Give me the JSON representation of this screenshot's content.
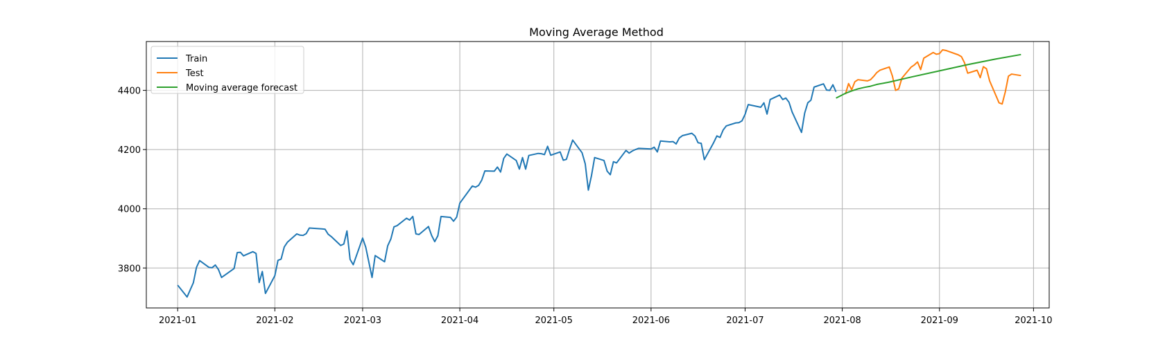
{
  "chart_data": {
    "type": "line",
    "title": "Moving Average Method",
    "xlabel": "",
    "ylabel": "",
    "grid": true,
    "legend_position": "top-left",
    "xlim": [
      "2020-12-22",
      "2021-10-06"
    ],
    "ylim": [
      3665,
      4565
    ],
    "x_ticks": [
      {
        "date": "2021-01-01",
        "label": "2021-01"
      },
      {
        "date": "2021-02-01",
        "label": "2021-02"
      },
      {
        "date": "2021-03-01",
        "label": "2021-03"
      },
      {
        "date": "2021-04-01",
        "label": "2021-04"
      },
      {
        "date": "2021-05-01",
        "label": "2021-05"
      },
      {
        "date": "2021-06-01",
        "label": "2021-06"
      },
      {
        "date": "2021-07-01",
        "label": "2021-07"
      },
      {
        "date": "2021-08-01",
        "label": "2021-08"
      },
      {
        "date": "2021-09-01",
        "label": "2021-09"
      },
      {
        "date": "2021-10-01",
        "label": "2021-10"
      }
    ],
    "y_ticks": [
      3800,
      4000,
      4200,
      4400
    ],
    "series": [
      {
        "name": "Train",
        "color": "#1f77b4",
        "points": [
          [
            "2021-01-01",
            3742
          ],
          [
            "2021-01-04",
            3702
          ],
          [
            "2021-01-06",
            3750
          ],
          [
            "2021-01-07",
            3802
          ],
          [
            "2021-01-08",
            3825
          ],
          [
            "2021-01-11",
            3802
          ],
          [
            "2021-01-12",
            3801
          ],
          [
            "2021-01-13",
            3810
          ],
          [
            "2021-01-14",
            3795
          ],
          [
            "2021-01-15",
            3768
          ],
          [
            "2021-01-19",
            3798
          ],
          [
            "2021-01-20",
            3852
          ],
          [
            "2021-01-21",
            3853
          ],
          [
            "2021-01-22",
            3841
          ],
          [
            "2021-01-25",
            3855
          ],
          [
            "2021-01-26",
            3849
          ],
          [
            "2021-01-27",
            3751
          ],
          [
            "2021-01-28",
            3788
          ],
          [
            "2021-01-29",
            3714
          ],
          [
            "2021-02-01",
            3774
          ],
          [
            "2021-02-02",
            3826
          ],
          [
            "2021-02-03",
            3830
          ],
          [
            "2021-02-04",
            3871
          ],
          [
            "2021-02-05",
            3887
          ],
          [
            "2021-02-08",
            3915
          ],
          [
            "2021-02-09",
            3911
          ],
          [
            "2021-02-10",
            3910
          ],
          [
            "2021-02-11",
            3916
          ],
          [
            "2021-02-12",
            3935
          ],
          [
            "2021-02-16",
            3932
          ],
          [
            "2021-02-17",
            3931
          ],
          [
            "2021-02-18",
            3914
          ],
          [
            "2021-02-19",
            3906
          ],
          [
            "2021-02-22",
            3876
          ],
          [
            "2021-02-23",
            3881
          ],
          [
            "2021-02-24",
            3925
          ],
          [
            "2021-02-25",
            3829
          ],
          [
            "2021-02-26",
            3811
          ],
          [
            "2021-03-01",
            3901
          ],
          [
            "2021-03-02",
            3870
          ],
          [
            "2021-03-03",
            3819
          ],
          [
            "2021-03-04",
            3768
          ],
          [
            "2021-03-05",
            3842
          ],
          [
            "2021-03-08",
            3821
          ],
          [
            "2021-03-09",
            3875
          ],
          [
            "2021-03-10",
            3898
          ],
          [
            "2021-03-11",
            3939
          ],
          [
            "2021-03-12",
            3943
          ],
          [
            "2021-03-15",
            3968
          ],
          [
            "2021-03-16",
            3962
          ],
          [
            "2021-03-17",
            3974
          ],
          [
            "2021-03-18",
            3915
          ],
          [
            "2021-03-19",
            3913
          ],
          [
            "2021-03-22",
            3940
          ],
          [
            "2021-03-23",
            3910
          ],
          [
            "2021-03-24",
            3889
          ],
          [
            "2021-03-25",
            3909
          ],
          [
            "2021-03-26",
            3974
          ],
          [
            "2021-03-29",
            3971
          ],
          [
            "2021-03-30",
            3958
          ],
          [
            "2021-03-31",
            3972
          ],
          [
            "2021-04-01",
            4019
          ],
          [
            "2021-04-05",
            4077
          ],
          [
            "2021-04-06",
            4073
          ],
          [
            "2021-04-07",
            4079
          ],
          [
            "2021-04-08",
            4097
          ],
          [
            "2021-04-09",
            4128
          ],
          [
            "2021-04-12",
            4127
          ],
          [
            "2021-04-13",
            4141
          ],
          [
            "2021-04-14",
            4124
          ],
          [
            "2021-04-15",
            4170
          ],
          [
            "2021-04-16",
            4185
          ],
          [
            "2021-04-19",
            4163
          ],
          [
            "2021-04-20",
            4134
          ],
          [
            "2021-04-21",
            4173
          ],
          [
            "2021-04-22",
            4134
          ],
          [
            "2021-04-23",
            4180
          ],
          [
            "2021-04-26",
            4187
          ],
          [
            "2021-04-27",
            4186
          ],
          [
            "2021-04-28",
            4183
          ],
          [
            "2021-04-29",
            4211
          ],
          [
            "2021-04-30",
            4181
          ],
          [
            "2021-05-03",
            4192
          ],
          [
            "2021-05-04",
            4164
          ],
          [
            "2021-05-05",
            4167
          ],
          [
            "2021-05-06",
            4201
          ],
          [
            "2021-05-07",
            4232
          ],
          [
            "2021-05-10",
            4189
          ],
          [
            "2021-05-11",
            4152
          ],
          [
            "2021-05-12",
            4063
          ],
          [
            "2021-05-13",
            4112
          ],
          [
            "2021-05-14",
            4173
          ],
          [
            "2021-05-17",
            4163
          ],
          [
            "2021-05-18",
            4127
          ],
          [
            "2021-05-19",
            4115
          ],
          [
            "2021-05-20",
            4159
          ],
          [
            "2021-05-21",
            4155
          ],
          [
            "2021-05-24",
            4197
          ],
          [
            "2021-05-25",
            4188
          ],
          [
            "2021-05-26",
            4195
          ],
          [
            "2021-05-27",
            4200
          ],
          [
            "2021-05-28",
            4204
          ],
          [
            "2021-06-01",
            4202
          ],
          [
            "2021-06-02",
            4208
          ],
          [
            "2021-06-03",
            4192
          ],
          [
            "2021-06-04",
            4229
          ],
          [
            "2021-06-07",
            4226
          ],
          [
            "2021-06-08",
            4227
          ],
          [
            "2021-06-09",
            4219
          ],
          [
            "2021-06-10",
            4239
          ],
          [
            "2021-06-11",
            4247
          ],
          [
            "2021-06-14",
            4255
          ],
          [
            "2021-06-15",
            4246
          ],
          [
            "2021-06-16",
            4223
          ],
          [
            "2021-06-17",
            4221
          ],
          [
            "2021-06-18",
            4166
          ],
          [
            "2021-06-21",
            4224
          ],
          [
            "2021-06-22",
            4246
          ],
          [
            "2021-06-23",
            4241
          ],
          [
            "2021-06-24",
            4266
          ],
          [
            "2021-06-25",
            4280
          ],
          [
            "2021-06-28",
            4290
          ],
          [
            "2021-06-29",
            4291
          ],
          [
            "2021-06-30",
            4297
          ],
          [
            "2021-07-01",
            4319
          ],
          [
            "2021-07-02",
            4352
          ],
          [
            "2021-07-06",
            4343
          ],
          [
            "2021-07-07",
            4358
          ],
          [
            "2021-07-08",
            4320
          ],
          [
            "2021-07-09",
            4369
          ],
          [
            "2021-07-12",
            4384
          ],
          [
            "2021-07-13",
            4369
          ],
          [
            "2021-07-14",
            4374
          ],
          [
            "2021-07-15",
            4360
          ],
          [
            "2021-07-16",
            4327
          ],
          [
            "2021-07-19",
            4258
          ],
          [
            "2021-07-20",
            4323
          ],
          [
            "2021-07-21",
            4358
          ],
          [
            "2021-07-22",
            4367
          ],
          [
            "2021-07-23",
            4411
          ],
          [
            "2021-07-26",
            4422
          ],
          [
            "2021-07-27",
            4401
          ],
          [
            "2021-07-28",
            4400
          ],
          [
            "2021-07-29",
            4419
          ],
          [
            "2021-07-30",
            4395
          ]
        ]
      },
      {
        "name": "Test",
        "color": "#ff7f0e",
        "points": [
          [
            "2021-08-02",
            4387
          ],
          [
            "2021-08-03",
            4423
          ],
          [
            "2021-08-04",
            4402
          ],
          [
            "2021-08-05",
            4429
          ],
          [
            "2021-08-06",
            4436
          ],
          [
            "2021-08-09",
            4432
          ],
          [
            "2021-08-10",
            4436
          ],
          [
            "2021-08-11",
            4447
          ],
          [
            "2021-08-12",
            4460
          ],
          [
            "2021-08-13",
            4468
          ],
          [
            "2021-08-16",
            4479
          ],
          [
            "2021-08-17",
            4448
          ],
          [
            "2021-08-18",
            4400
          ],
          [
            "2021-08-19",
            4405
          ],
          [
            "2021-08-20",
            4441
          ],
          [
            "2021-08-23",
            4479
          ],
          [
            "2021-08-24",
            4486
          ],
          [
            "2021-08-25",
            4496
          ],
          [
            "2021-08-26",
            4470
          ],
          [
            "2021-08-27",
            4509
          ],
          [
            "2021-08-30",
            4528
          ],
          [
            "2021-08-31",
            4522
          ],
          [
            "2021-09-01",
            4524
          ],
          [
            "2021-09-02",
            4537
          ],
          [
            "2021-09-03",
            4535
          ],
          [
            "2021-09-07",
            4520
          ],
          [
            "2021-09-08",
            4514
          ],
          [
            "2021-09-09",
            4493
          ],
          [
            "2021-09-10",
            4458
          ],
          [
            "2021-09-13",
            4468
          ],
          [
            "2021-09-14",
            4443
          ],
          [
            "2021-09-15",
            4480
          ],
          [
            "2021-09-16",
            4473
          ],
          [
            "2021-09-17",
            4432
          ],
          [
            "2021-09-20",
            4358
          ],
          [
            "2021-09-21",
            4354
          ],
          [
            "2021-09-22",
            4395
          ],
          [
            "2021-09-23",
            4448
          ],
          [
            "2021-09-24",
            4455
          ],
          [
            "2021-09-27",
            4450
          ]
        ]
      },
      {
        "name": "Moving average forecast",
        "color": "#2ca02c",
        "points": [
          [
            "2021-07-30",
            4374
          ],
          [
            "2021-08-02",
            4390
          ],
          [
            "2021-08-04",
            4398
          ],
          [
            "2021-08-06",
            4405
          ],
          [
            "2021-08-08",
            4410
          ],
          [
            "2021-08-10",
            4414
          ],
          [
            "2021-08-12",
            4420
          ],
          [
            "2021-08-16",
            4428
          ],
          [
            "2021-08-23",
            4445
          ],
          [
            "2021-09-01",
            4466
          ],
          [
            "2021-09-10",
            4487
          ],
          [
            "2021-09-19",
            4506
          ],
          [
            "2021-09-27",
            4521
          ]
        ]
      }
    ]
  }
}
